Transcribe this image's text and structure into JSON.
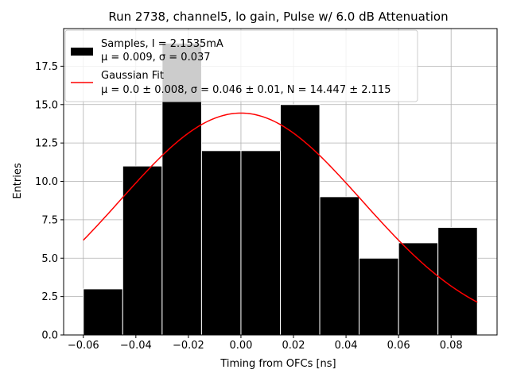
{
  "chart_data": {
    "type": "bar",
    "title": "Run 2738, channel5, lo gain, Pulse w/ 6.0 dB Attenuation",
    "xlabel": "Timing from OFCs [ns]",
    "ylabel": "Entries",
    "xlim": [
      -0.0675,
      0.0975
    ],
    "ylim": [
      0,
      19.95
    ],
    "x_ticks": [
      -0.06,
      -0.04,
      -0.02,
      0.0,
      0.02,
      0.04,
      0.06,
      0.08
    ],
    "x_tick_labels": [
      "−0.06",
      "−0.04",
      "−0.02",
      "0.00",
      "0.02",
      "0.04",
      "0.06",
      "0.08"
    ],
    "y_ticks": [
      0.0,
      2.5,
      5.0,
      7.5,
      10.0,
      12.5,
      15.0,
      17.5
    ],
    "y_tick_labels": [
      "0.0",
      "2.5",
      "5.0",
      "7.5",
      "10.0",
      "12.5",
      "15.0",
      "17.5"
    ],
    "grid": true,
    "legend_position": "top-left",
    "histogram": {
      "name": "Samples, I = 2.1535mA",
      "stats_label": "μ = 0.009, σ = 0.037",
      "color": "#000000",
      "bin_edges": [
        -0.06,
        -0.045,
        -0.03,
        -0.015,
        0.0,
        0.015,
        0.03,
        0.045,
        0.06,
        0.075,
        0.09
      ],
      "counts": [
        3,
        11,
        19,
        12,
        12,
        15,
        9,
        5,
        6,
        7
      ]
    },
    "fit": {
      "name": "Gaussian Fit",
      "stats_label": "μ = 0.0 ± 0.008, σ = 0.046 ± 0.01, N = 14.447 ± 2.115",
      "color": "#ff0000",
      "mu": 0.0,
      "sigma": 0.046,
      "N": 14.447,
      "x_range": [
        -0.06,
        0.09
      ]
    }
  }
}
